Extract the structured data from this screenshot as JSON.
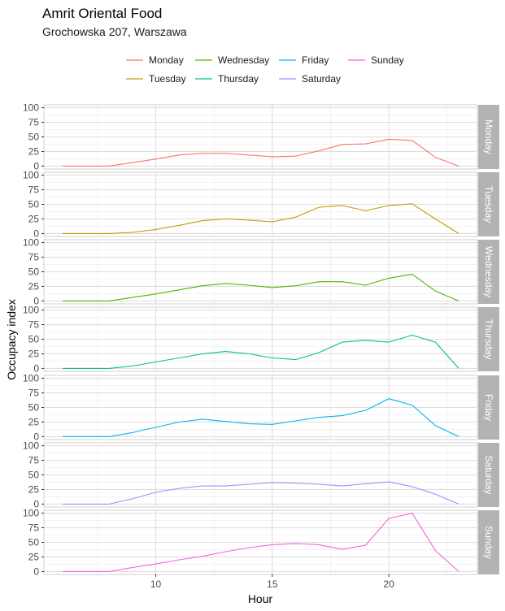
{
  "chart_data": {
    "type": "line",
    "title": "Amrit Oriental Food",
    "subtitle": "Grochowska 207, Warszawa",
    "xlabel": "Hour",
    "ylabel": "Occupacy index",
    "xlim": [
      5.2,
      23.8
    ],
    "ylim": [
      -5,
      105
    ],
    "x_ticks": [
      10,
      15,
      20
    ],
    "y_ticks": [
      0,
      25,
      50,
      75,
      100
    ],
    "grid": true,
    "legend_position": "top",
    "x": [
      6,
      7,
      8,
      9,
      10,
      11,
      12,
      13,
      14,
      15,
      16,
      17,
      18,
      19,
      20,
      21,
      22,
      23
    ],
    "series": [
      {
        "name": "Monday",
        "color": "#F8766D",
        "values": [
          0,
          0,
          0,
          6,
          12,
          19,
          22,
          22,
          19,
          16,
          17,
          26,
          37,
          38,
          46,
          44,
          15,
          0
        ]
      },
      {
        "name": "Tuesday",
        "color": "#C49A00",
        "values": [
          0,
          0,
          0,
          2,
          7,
          14,
          22,
          25,
          23,
          20,
          28,
          45,
          48,
          39,
          48,
          51,
          25,
          0
        ]
      },
      {
        "name": "Wednesday",
        "color": "#53B400",
        "values": [
          0,
          0,
          0,
          6,
          12,
          19,
          26,
          30,
          27,
          23,
          26,
          33,
          33,
          27,
          39,
          46,
          17,
          0
        ]
      },
      {
        "name": "Thursday",
        "color": "#00C094",
        "values": [
          0,
          0,
          0,
          4,
          11,
          18,
          25,
          29,
          25,
          18,
          15,
          27,
          45,
          48,
          45,
          57,
          45,
          0
        ]
      },
      {
        "name": "Friday",
        "color": "#00B6EB",
        "values": [
          0,
          0,
          0,
          7,
          16,
          25,
          30,
          26,
          22,
          21,
          27,
          33,
          36,
          45,
          65,
          54,
          19,
          0
        ]
      },
      {
        "name": "Saturday",
        "color": "#A58AFF",
        "values": [
          0,
          0,
          0,
          9,
          20,
          27,
          31,
          31,
          34,
          37,
          36,
          34,
          31,
          35,
          38,
          30,
          17,
          0
        ]
      },
      {
        "name": "Sunday",
        "color": "#FB61D7",
        "values": [
          0,
          0,
          0,
          7,
          13,
          20,
          26,
          34,
          41,
          46,
          48,
          46,
          38,
          45,
          91,
          100,
          36,
          0
        ]
      }
    ],
    "legend": {
      "row1": [
        "Monday",
        "Wednesday",
        "Friday",
        "Sunday"
      ],
      "row2": [
        "Tuesday",
        "Thursday",
        "Saturday"
      ]
    }
  }
}
